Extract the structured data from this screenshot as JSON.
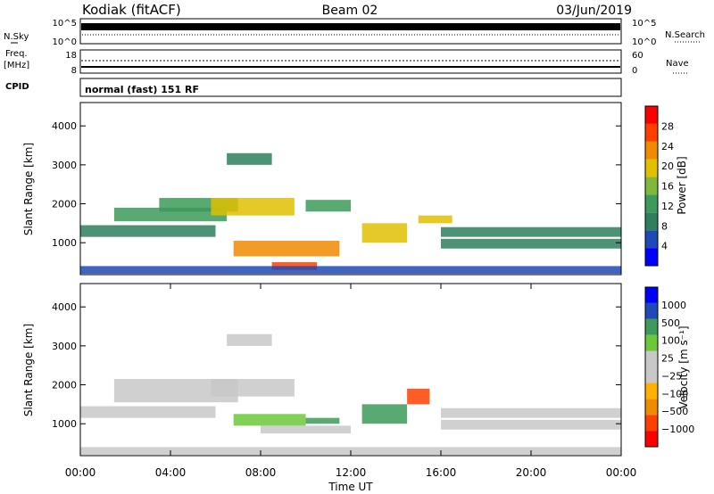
{
  "header": {
    "station": "Kodiak (fitACF)",
    "beam": "Beam 02",
    "date": "03/Jun/2019"
  },
  "colors": {
    "power_scale": [
      "#0000ff",
      "#1f49b5",
      "#2f7f5e",
      "#3c9a5a",
      "#7fb83a",
      "#e0c000",
      "#f08a00",
      "#ff4000",
      "#ff0000"
    ],
    "velocity_scale": [
      "#ff0000",
      "#ff4000",
      "#f08a00",
      "#ffb000",
      "#c8c8c8",
      "#c8c8c8",
      "#6cc83a",
      "#3c9a5a",
      "#1f49b5",
      "#0000ff"
    ],
    "ground_scatter": "#c8c8c8"
  },
  "nsky_panel": {
    "left_label": "N.Sky",
    "right_label": "N.Search",
    "left_ticks": [
      "10^5",
      "10^0"
    ],
    "right_ticks": [
      "10^5",
      "10^0"
    ]
  },
  "freq_panel": {
    "left_label": "Freq.",
    "left_unit": "[MHz]",
    "right_label": "Nave",
    "left_ticks": [
      "18",
      "8"
    ],
    "right_ticks": [
      "60",
      "0"
    ]
  },
  "cpid_panel": {
    "label": "CPID",
    "text": "normal (fast) 151 RF"
  },
  "chart_data": [
    {
      "type": "heatmap",
      "quantity": "Power",
      "ylabel": "Slant Range [km]",
      "ylim": [
        180,
        4600
      ],
      "yticks": [
        "4000",
        "3000",
        "2000",
        "1000"
      ],
      "colorbar_label": "Power [dB]",
      "colorbar_ticks": [
        "28",
        "24",
        "20",
        "16",
        "12",
        "8",
        "4"
      ],
      "colorbar_range": [
        0,
        32
      ],
      "x_range_hours": [
        0,
        24
      ],
      "echo_bands": [
        {
          "t_start": 0.0,
          "t_end": 6.0,
          "range_start": 1150,
          "range_end": 1450,
          "value": 10
        },
        {
          "t_start": 1.5,
          "t_end": 6.5,
          "range_start": 1550,
          "range_end": 1900,
          "value": 12
        },
        {
          "t_start": 3.5,
          "t_end": 7.0,
          "range_start": 1800,
          "range_end": 2150,
          "value": 14
        },
        {
          "t_start": 5.8,
          "t_end": 9.5,
          "range_start": 1700,
          "range_end": 2150,
          "value": 20
        },
        {
          "t_start": 6.5,
          "t_end": 8.5,
          "range_start": 3000,
          "range_end": 3300,
          "value": 10
        },
        {
          "t_start": 6.8,
          "t_end": 11.5,
          "range_start": 650,
          "range_end": 1050,
          "value": 24
        },
        {
          "t_start": 8.5,
          "t_end": 10.5,
          "range_start": 300,
          "range_end": 500,
          "value": 28
        },
        {
          "t_start": 10.0,
          "t_end": 12.0,
          "range_start": 1800,
          "range_end": 2100,
          "value": 14
        },
        {
          "t_start": 12.5,
          "t_end": 14.5,
          "range_start": 1000,
          "range_end": 1500,
          "value": 18
        },
        {
          "t_start": 15.0,
          "t_end": 16.5,
          "range_start": 1500,
          "range_end": 1700,
          "value": 18
        },
        {
          "t_start": 16.0,
          "t_end": 24.0,
          "range_start": 1150,
          "range_end": 1400,
          "value": 10
        },
        {
          "t_start": 16.0,
          "t_end": 24.0,
          "range_start": 850,
          "range_end": 1100,
          "value": 8
        },
        {
          "t_start": 0.0,
          "t_end": 24.0,
          "range_start": 200,
          "range_end": 400,
          "value": 6
        }
      ]
    },
    {
      "type": "heatmap",
      "quantity": "Velocity",
      "ylabel": "Slant Range [km]",
      "ylim": [
        180,
        4600
      ],
      "yticks": [
        "4000",
        "3000",
        "2000",
        "1000"
      ],
      "colorbar_label": "Velocity [m s⁻¹]",
      "colorbar_ticks": [
        "1000",
        "500",
        "100",
        "25",
        "−25",
        "−100",
        "−500",
        "−1000"
      ],
      "x_range_hours": [
        0,
        24
      ],
      "xticks": [
        "00:00",
        "04:00",
        "08:00",
        "12:00",
        "16:00",
        "20:00",
        "00:00"
      ],
      "xlabel": "Time UT",
      "echo_bands": [
        {
          "t_start": 0.0,
          "t_end": 6.0,
          "range_start": 1150,
          "range_end": 1450,
          "value": 0
        },
        {
          "t_start": 1.5,
          "t_end": 7.0,
          "range_start": 1550,
          "range_end": 2150,
          "value": 0
        },
        {
          "t_start": 5.8,
          "t_end": 9.5,
          "range_start": 1700,
          "range_end": 2150,
          "value": 0
        },
        {
          "t_start": 6.5,
          "t_end": 8.5,
          "range_start": 3000,
          "range_end": 3300,
          "value": 0
        },
        {
          "t_start": 6.8,
          "t_end": 10.0,
          "range_start": 950,
          "range_end": 1250,
          "value": 60
        },
        {
          "t_start": 8.0,
          "t_end": 12.0,
          "range_start": 750,
          "range_end": 950,
          "value": 0
        },
        {
          "t_start": 10.0,
          "t_end": 11.5,
          "range_start": 1000,
          "range_end": 1150,
          "value": 200
        },
        {
          "t_start": 12.5,
          "t_end": 14.5,
          "range_start": 1000,
          "range_end": 1500,
          "value": 150
        },
        {
          "t_start": 14.5,
          "t_end": 15.5,
          "range_start": 1500,
          "range_end": 1900,
          "value": -150
        },
        {
          "t_start": 16.0,
          "t_end": 24.0,
          "range_start": 1150,
          "range_end": 1400,
          "value": 0
        },
        {
          "t_start": 16.0,
          "t_end": 24.0,
          "range_start": 850,
          "range_end": 1100,
          "value": 0
        },
        {
          "t_start": 0.0,
          "t_end": 24.0,
          "range_start": 200,
          "range_end": 400,
          "value": 0
        }
      ]
    }
  ]
}
